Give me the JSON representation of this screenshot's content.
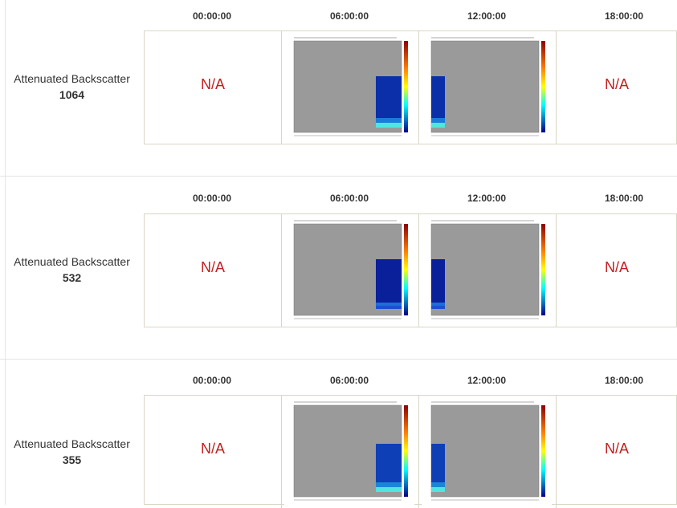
{
  "times": [
    "00:00:00",
    "06:00:00",
    "12:00:00",
    "18:00:00"
  ],
  "na_text": "N/A",
  "sections": [
    {
      "label": "Attenuated Backscatter",
      "wavelength": "1064"
    },
    {
      "label": "Attenuated Backscatter",
      "wavelength": "532"
    },
    {
      "label": "Attenuated Backscatter",
      "wavelength": "355"
    }
  ],
  "colors": {
    "na_red": "#c41e1e",
    "plot_gray": "#9a9a9a",
    "data_blue": "#0a2fa8",
    "data_cyan": "#4fe6df",
    "border": "#d9d6c4"
  }
}
